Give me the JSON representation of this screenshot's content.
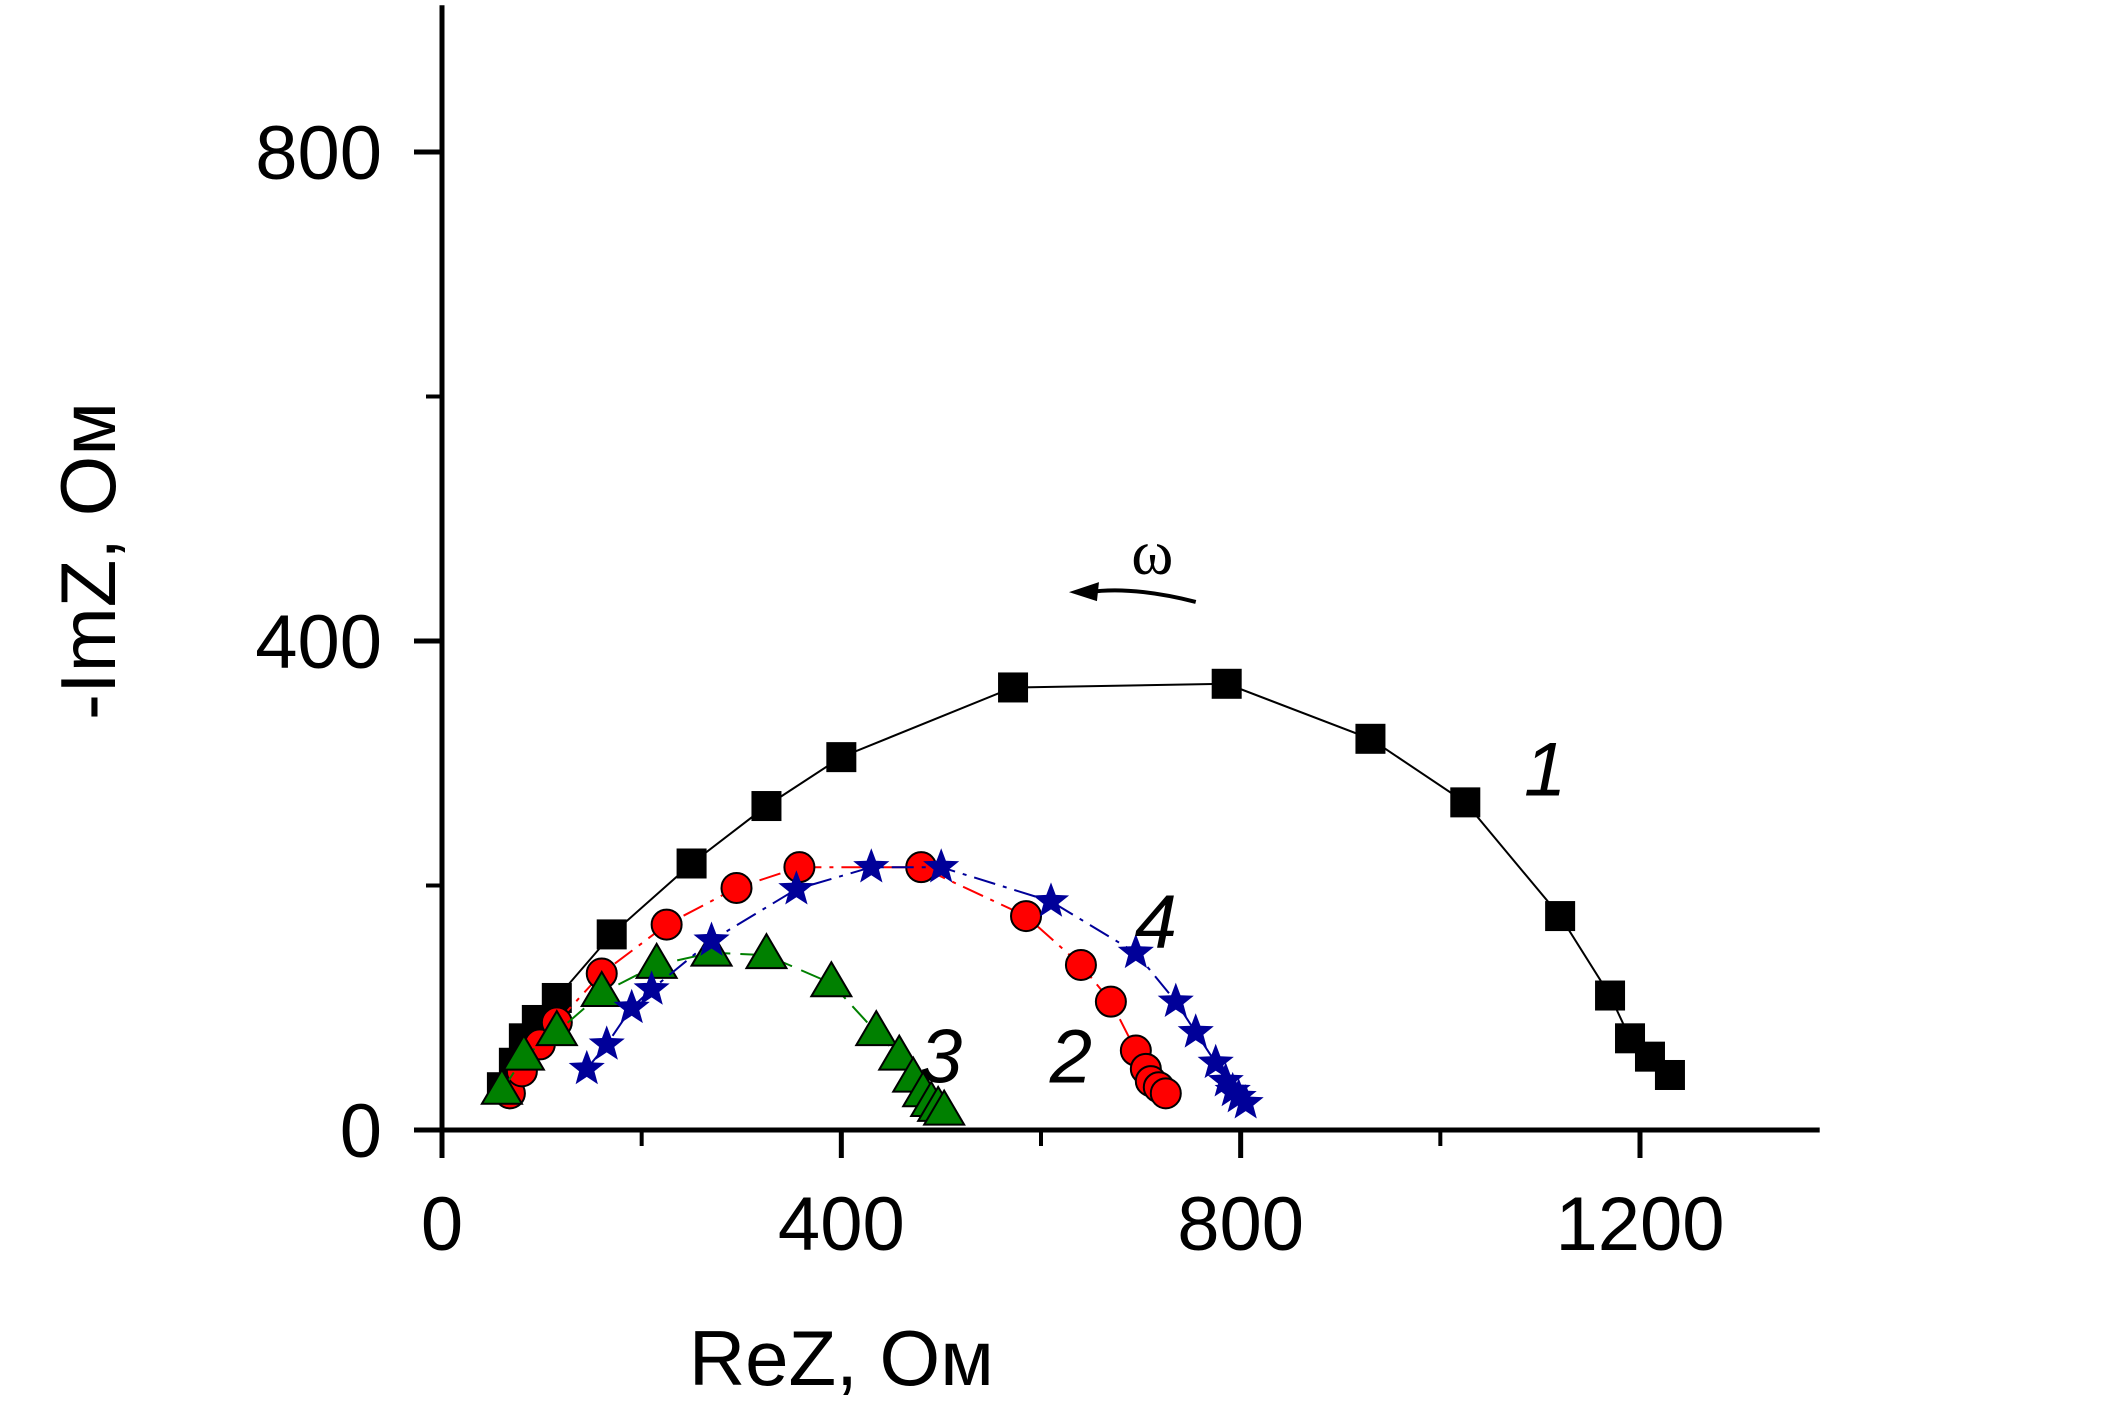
{
  "chart_data": {
    "type": "scatter",
    "title": "",
    "xlabel": "ReZ, Ом",
    "ylabel": "-ImZ, Ом",
    "xlim": [
      0,
      1380
    ],
    "ylim": [
      0,
      920
    ],
    "x_ticks": [
      0,
      400,
      800,
      1200
    ],
    "x_minor_ticks": [
      200,
      600,
      1000
    ],
    "y_ticks": [
      0,
      400,
      800
    ],
    "y_minor_ticks": [
      200,
      600
    ],
    "annotation": {
      "text": "ω",
      "arrow_from": [
        755,
        432
      ],
      "arrow_to": [
        628,
        440
      ]
    },
    "series": [
      {
        "label": "1",
        "marker": "square",
        "color": "#000000",
        "line_style": "solid",
        "label_pos": [
          1105,
          295
        ],
        "x": [
          60,
          72,
          82,
          95,
          115,
          170,
          250,
          325,
          400,
          572,
          786,
          930,
          1025,
          1120,
          1170,
          1190,
          1210,
          1230
        ],
        "y": [
          35,
          55,
          75,
          90,
          108,
          160,
          218,
          265,
          305,
          362,
          365,
          320,
          268,
          175,
          110,
          75,
          60,
          45
        ]
      },
      {
        "label": "2",
        "marker": "circle",
        "color": "#ff0000",
        "line_style": "dashdot",
        "label_pos": [
          630,
          60
        ],
        "x": [
          68,
          80,
          98,
          115,
          160,
          225,
          295,
          358,
          480,
          585,
          640,
          670,
          695,
          705,
          710,
          718,
          725
        ],
        "y": [
          30,
          48,
          70,
          88,
          128,
          168,
          198,
          215,
          215,
          175,
          135,
          105,
          65,
          50,
          40,
          35,
          30
        ]
      },
      {
        "label": "3",
        "marker": "triangle",
        "color": "#008000",
        "line_style": "dash",
        "label_pos": [
          500,
          60
        ],
        "x": [
          60,
          82,
          115,
          160,
          215,
          270,
          325,
          390,
          435,
          458,
          472,
          482,
          490,
          497,
          503
        ],
        "y": [
          32,
          60,
          80,
          112,
          135,
          145,
          143,
          120,
          80,
          60,
          42,
          30,
          22,
          18,
          15
        ]
      },
      {
        "label": "4",
        "marker": "star",
        "color": "#000099",
        "line_style": "dashdot",
        "label_pos": [
          715,
          170
        ],
        "x": [
          145,
          165,
          190,
          210,
          270,
          355,
          430,
          500,
          610,
          695,
          735,
          755,
          775,
          785,
          792,
          798,
          805
        ],
        "y": [
          50,
          70,
          100,
          115,
          155,
          197,
          215,
          215,
          187,
          145,
          105,
          80,
          55,
          40,
          32,
          27,
          22
        ]
      }
    ]
  }
}
